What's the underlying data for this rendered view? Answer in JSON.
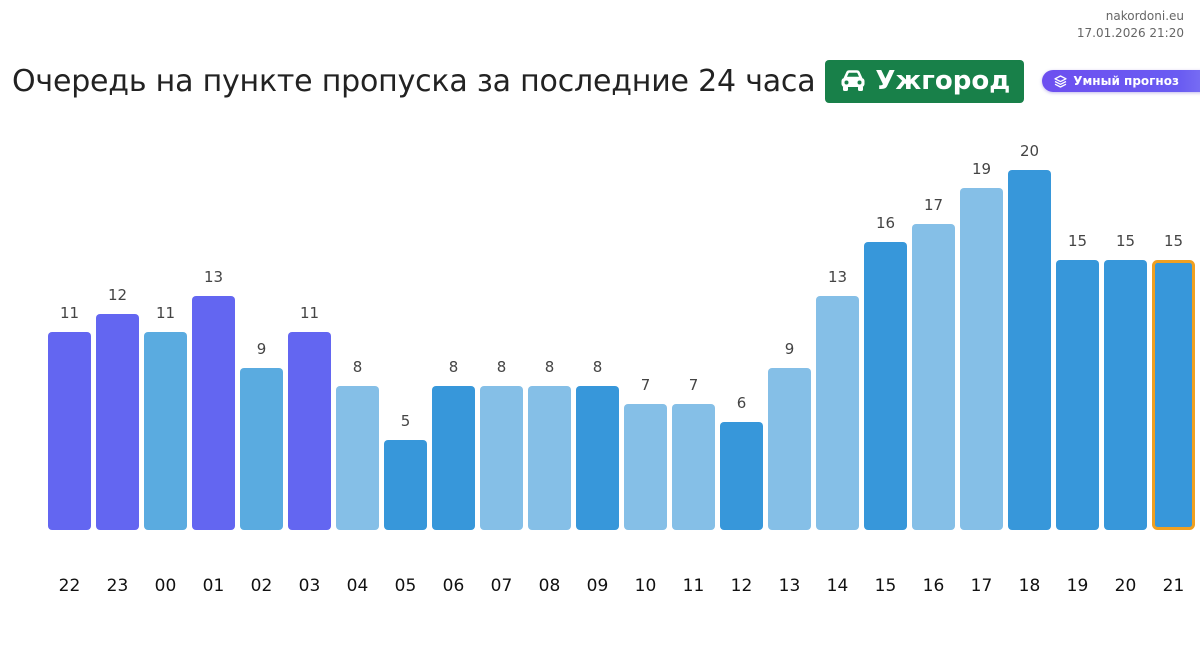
{
  "site": "nakordoni.eu",
  "timestamp": "17.01.2026 21:20",
  "header": {
    "title": "Очередь на пункте пропуска за последние 24 часа",
    "place": "Ужгород",
    "place_icon": "car-icon",
    "forecast_label": "Умный прогноз",
    "forecast_icon": "layers-icon"
  },
  "colors": {
    "forecast": "#6366f1",
    "medium": "#5aabe0",
    "light": "#85bfe7",
    "dark": "#3797da",
    "highlight_border": "#f0a020",
    "badge": "#188049"
  },
  "chart_data": {
    "type": "bar",
    "categories": [
      "22",
      "23",
      "00",
      "01",
      "02",
      "03",
      "04",
      "05",
      "06",
      "07",
      "08",
      "09",
      "10",
      "11",
      "12",
      "13",
      "14",
      "15",
      "16",
      "17",
      "18",
      "19",
      "20",
      "21"
    ],
    "values": [
      11,
      12,
      11,
      13,
      9,
      11,
      8,
      5,
      8,
      8,
      8,
      8,
      7,
      7,
      6,
      9,
      13,
      16,
      17,
      19,
      20,
      15,
      15,
      15
    ],
    "bar_colors": [
      "forecast",
      "forecast",
      "medium",
      "forecast",
      "medium",
      "forecast",
      "light",
      "dark",
      "dark",
      "light",
      "light",
      "dark",
      "light",
      "light",
      "dark",
      "light",
      "light",
      "dark",
      "light",
      "light",
      "dark",
      "dark",
      "dark",
      "dark"
    ],
    "highlighted_index": 23,
    "ylim": [
      0,
      20
    ],
    "grid": false,
    "title": "",
    "xlabel": "",
    "ylabel": ""
  }
}
